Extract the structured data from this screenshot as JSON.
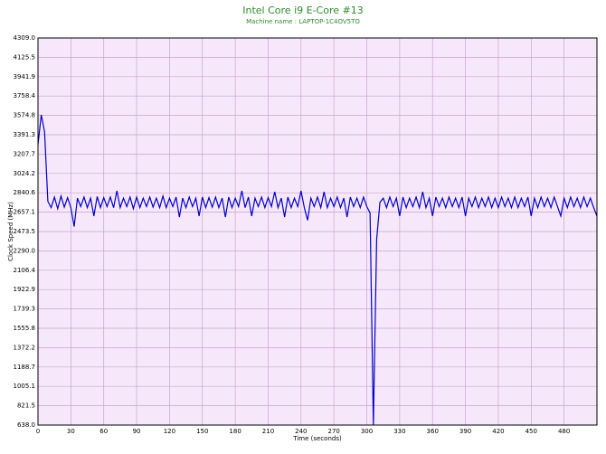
{
  "chart_data": {
    "type": "line",
    "title": "Intel Core i9 E-Core #13",
    "subtitle": "Machine name : LAPTOP-1C4OV5TO",
    "xlabel": "Time (seconds)",
    "ylabel": "Clock Speed (MHz)",
    "xlim": [
      0,
      510
    ],
    "ylim": [
      638,
      4309
    ],
    "xticks": [
      0,
      30,
      60,
      90,
      120,
      150,
      180,
      210,
      240,
      270,
      300,
      330,
      360,
      390,
      420,
      450,
      480
    ],
    "yticks": [
      {
        "value": 638,
        "label": "638.0"
      },
      821.5,
      1005.1,
      1188.7,
      1372.2,
      1555.8,
      1739.3,
      1922.9,
      2106.4,
      {
        "value": 2290,
        "label": "2290.0"
      },
      2473.5,
      2657.1,
      2840.6,
      3024.2,
      3207.7,
      3391.3,
      3574.8,
      3758.4,
      3941.9,
      4125.5,
      {
        "value": 4309,
        "label": "4309.0"
      }
    ],
    "grid": true,
    "x": [
      0,
      3,
      6,
      9,
      12,
      15,
      18,
      21,
      24,
      27,
      30,
      33,
      36,
      39,
      42,
      45,
      48,
      51,
      54,
      57,
      60,
      63,
      66,
      69,
      72,
      75,
      78,
      81,
      84,
      87,
      90,
      93,
      96,
      99,
      102,
      105,
      108,
      111,
      114,
      117,
      120,
      123,
      126,
      129,
      132,
      135,
      138,
      141,
      144,
      147,
      150,
      153,
      156,
      159,
      162,
      165,
      168,
      171,
      174,
      177,
      180,
      183,
      186,
      189,
      192,
      195,
      198,
      201,
      204,
      207,
      210,
      213,
      216,
      219,
      222,
      225,
      228,
      231,
      234,
      237,
      240,
      243,
      246,
      249,
      252,
      255,
      258,
      261,
      264,
      267,
      270,
      273,
      276,
      279,
      282,
      285,
      288,
      291,
      294,
      297,
      300,
      303,
      306,
      309,
      312,
      315,
      318,
      321,
      324,
      327,
      330,
      333,
      336,
      339,
      342,
      345,
      348,
      351,
      354,
      357,
      360,
      363,
      366,
      369,
      372,
      375,
      378,
      381,
      384,
      387,
      390,
      393,
      396,
      399,
      402,
      405,
      408,
      411,
      414,
      417,
      420,
      423,
      426,
      429,
      432,
      435,
      438,
      441,
      444,
      447,
      450,
      453,
      456,
      459,
      462,
      465,
      468,
      471,
      474,
      477,
      480,
      483,
      486,
      489,
      492,
      495,
      498,
      501,
      504,
      507,
      510
    ],
    "series": [
      {
        "name": "Clock Speed",
        "color": "#0000cc",
        "values": [
          3300,
          3580,
          3420,
          2760,
          2700,
          2800,
          2690,
          2810,
          2705,
          2795,
          2700,
          2520,
          2790,
          2710,
          2800,
          2700,
          2790,
          2620,
          2805,
          2700,
          2795,
          2710,
          2800,
          2700,
          2860,
          2700,
          2790,
          2710,
          2800,
          2690,
          2800,
          2700,
          2790,
          2710,
          2800,
          2705,
          2790,
          2700,
          2810,
          2700,
          2790,
          2710,
          2800,
          2610,
          2790,
          2700,
          2800,
          2710,
          2790,
          2620,
          2800,
          2700,
          2795,
          2705,
          2800,
          2700,
          2790,
          2610,
          2800,
          2700,
          2790,
          2710,
          2860,
          2700,
          2800,
          2620,
          2790,
          2710,
          2800,
          2700,
          2795,
          2710,
          2850,
          2700,
          2790,
          2610,
          2800,
          2700,
          2790,
          2710,
          2860,
          2700,
          2580,
          2790,
          2710,
          2800,
          2700,
          2850,
          2700,
          2790,
          2710,
          2800,
          2700,
          2790,
          2610,
          2800,
          2710,
          2790,
          2700,
          2800,
          2710,
          2650,
          638,
          2400,
          2750,
          2790,
          2700,
          2800,
          2710,
          2790,
          2620,
          2800,
          2700,
          2790,
          2710,
          2800,
          2700,
          2850,
          2700,
          2790,
          2620,
          2800,
          2710,
          2790,
          2700,
          2800,
          2710,
          2790,
          2700,
          2800,
          2620,
          2790,
          2710,
          2800,
          2700,
          2790,
          2710,
          2800,
          2700,
          2790,
          2700,
          2800,
          2710,
          2790,
          2700,
          2800,
          2700,
          2790,
          2710,
          2800,
          2620,
          2790,
          2700,
          2800,
          2710,
          2790,
          2700,
          2800,
          2710,
          2620,
          2790,
          2700,
          2800,
          2710,
          2790,
          2700,
          2800,
          2710,
          2790,
          2700,
          2620
        ]
      }
    ]
  }
}
